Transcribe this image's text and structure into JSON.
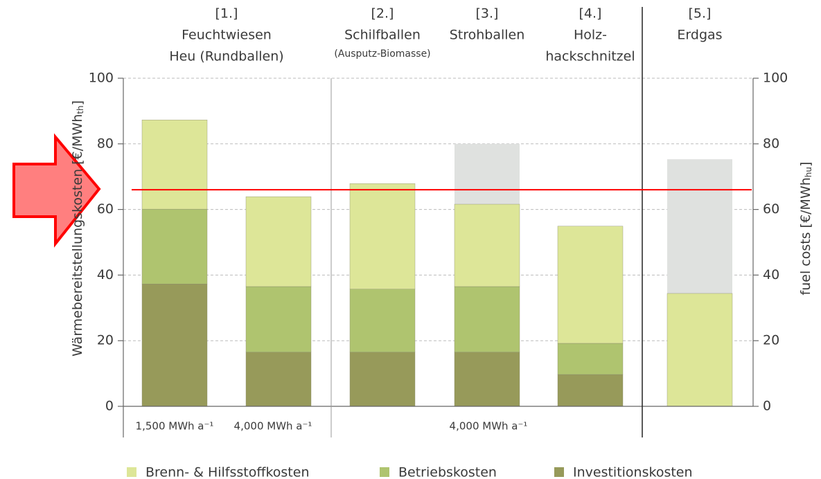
{
  "chart_data": {
    "type": "stacked_bar",
    "headers": [
      {
        "number": "[1.]",
        "lines": [
          "Feuchtwiesen",
          "Heu (Rundballen)"
        ]
      },
      {
        "number": "[2.]",
        "lines": [
          "Schilfballen"
        ],
        "note": "(Ausputz-Biomasse)"
      },
      {
        "number": "[3.]",
        "lines": [
          "Strohballen"
        ]
      },
      {
        "number": "[4.]",
        "lines": [
          "Holz-",
          "hackschnitzel"
        ]
      },
      {
        "number": "[5.]",
        "lines": [
          "Erdgas"
        ]
      }
    ],
    "capacity_labels": [
      "1,500 MWh a⁻¹",
      "4,000 MWh a⁻¹",
      "4,000 MWh a⁻¹"
    ],
    "y_label": {
      "text": "Wärmebereitstellungskosten [€/MWh",
      "sub": "th",
      "end": "]"
    },
    "y2_label": {
      "text": "fuel costs [€/MWh",
      "sub": "hu",
      "end": "]"
    },
    "ylim": [
      0,
      100
    ],
    "yticks": [
      0,
      20,
      40,
      60,
      80,
      100
    ],
    "y2lim": [
      0,
      100
    ],
    "y2ticks": [
      0,
      20,
      40,
      60,
      80,
      100
    ],
    "grid": true,
    "series": [
      {
        "name": "Investitionskosten",
        "color": "#979a5a",
        "values": [
          37.3,
          16.5,
          16.5,
          16.5,
          9.7,
          null
        ]
      },
      {
        "name": "Betriebskosten",
        "color": "#afc46f",
        "values": [
          22.8,
          20,
          19.2,
          20,
          9.5,
          null
        ]
      },
      {
        "name": "Brenn- & Hilfsstoffkosten",
        "color": "#dde698",
        "values": [
          27.2,
          27.4,
          32.2,
          25.1,
          35.7,
          34.4
        ]
      }
    ],
    "fuel_costs": {
      "color": "#dfe1df",
      "axis": "y2",
      "values": [
        null,
        null,
        null,
        80,
        null,
        75.3
      ]
    },
    "reference_line": {
      "value": 66,
      "color": "#ff0000"
    }
  }
}
